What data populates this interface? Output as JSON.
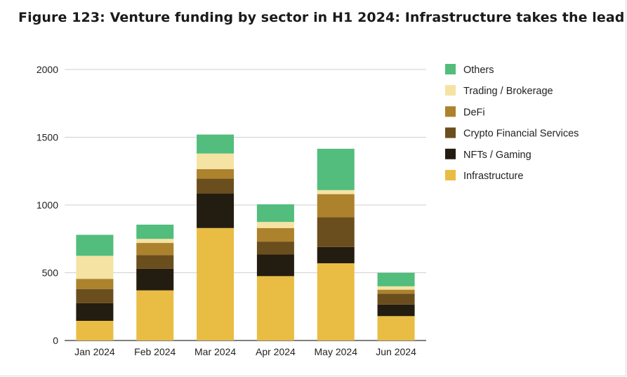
{
  "title": "Figure 123: Venture funding by sector in H1 2024: Infrastructure takes the lead",
  "chart_data": {
    "type": "bar",
    "stacked": true,
    "categories": [
      "Jan 2024",
      "Feb 2024",
      "Mar 2024",
      "Apr 2024",
      "May 2024",
      "Jun 2024"
    ],
    "series": [
      {
        "name": "Infrastructure",
        "color": "#E9BD44",
        "values": [
          145,
          370,
          830,
          475,
          570,
          180
        ]
      },
      {
        "name": "NFTs / Gaming",
        "color": "#231C10",
        "values": [
          130,
          160,
          255,
          160,
          120,
          85
        ]
      },
      {
        "name": "Crypto Financial Services",
        "color": "#6B4E1E",
        "values": [
          105,
          100,
          110,
          95,
          220,
          80
        ]
      },
      {
        "name": "DeFi",
        "color": "#AD822C",
        "values": [
          75,
          90,
          70,
          100,
          170,
          30
        ]
      },
      {
        "name": "Trading / Brokerage",
        "color": "#F5E3A3",
        "values": [
          170,
          30,
          115,
          45,
          30,
          25
        ]
      },
      {
        "name": "Others",
        "color": "#52BD7D",
        "values": [
          155,
          105,
          140,
          130,
          305,
          100
        ]
      }
    ],
    "yticks": [
      0,
      500,
      1000,
      1500,
      2000
    ],
    "ylim": [
      0,
      2000
    ],
    "grid": true,
    "legend_position": "right"
  }
}
